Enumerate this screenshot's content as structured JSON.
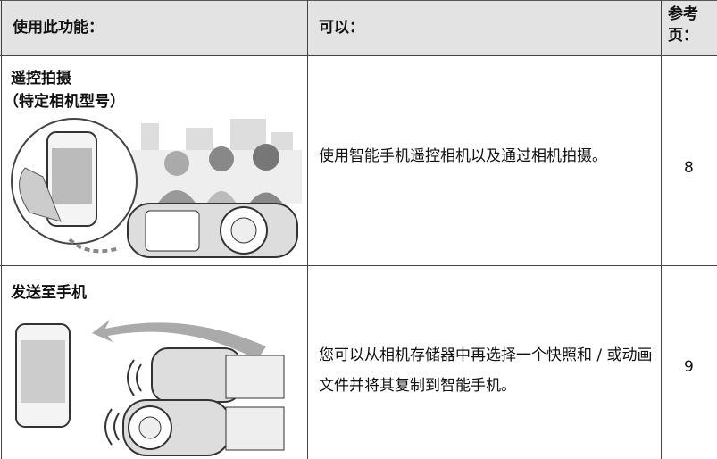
{
  "header": {
    "columns": [
      "使用此功能：",
      "可以：",
      "参考页："
    ]
  },
  "rows": [
    {
      "feature": "遥控拍摄",
      "note": "（特定相机型号）",
      "description": "使用智能手机遥控相机以及通过相机拍摄。",
      "page": 8
    },
    {
      "feature": "发送至手机",
      "description": "您可以从相机存储器中再选择一个快照和 / 或动画文件并将其复制到智能手机。",
      "page": 9
    }
  ]
}
